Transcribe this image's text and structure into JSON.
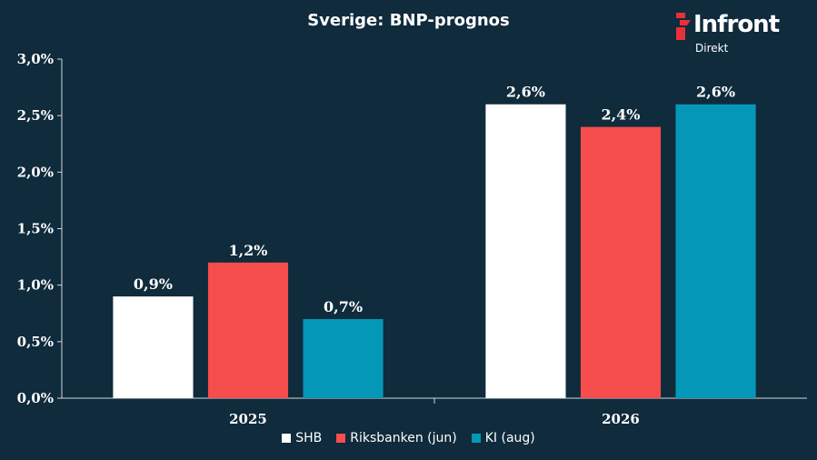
{
  "chart_data": {
    "type": "bar",
    "title": "Sverige:  BNP-prognos",
    "categories": [
      "2025",
      "2026"
    ],
    "series": [
      {
        "name": "SHB",
        "values": [
          0.9,
          2.6
        ],
        "labels": [
          "0,9%",
          "2,6%"
        ],
        "color": "#ffffff"
      },
      {
        "name": "Riksbanken (jun)",
        "values": [
          1.2,
          2.4
        ],
        "labels": [
          "1,2%",
          "2,4%"
        ],
        "color": "#f64d4d"
      },
      {
        "name": "KI (aug)",
        "values": [
          0.7,
          2.6
        ],
        "labels": [
          "0,7%",
          "2,6%"
        ],
        "color": "#0597b8"
      }
    ],
    "ylim": [
      0,
      3.0
    ],
    "yticks": [
      0,
      0.5,
      1.0,
      1.5,
      2.0,
      2.5,
      3.0
    ],
    "ytick_labels": [
      "0,0%",
      "0,5%",
      "1,0%",
      "1,5%",
      "2,0%",
      "2,5%",
      "3,0%"
    ],
    "xlabel": "",
    "ylabel": "",
    "grid": false,
    "legend_position": "bottom"
  },
  "logo": {
    "brand": "Infront",
    "sub": "Direkt",
    "brand_color": "#e8303a"
  },
  "background_color": "#0f2b3c"
}
